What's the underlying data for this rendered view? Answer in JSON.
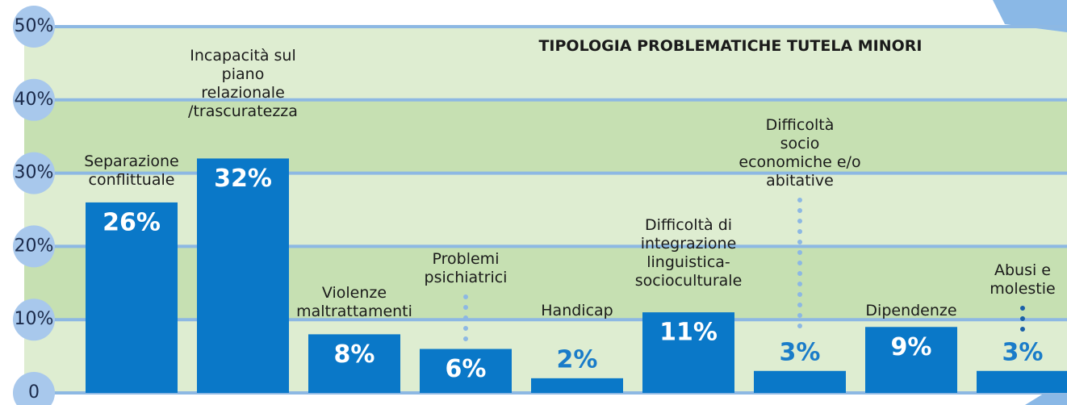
{
  "chart_data": {
    "type": "bar",
    "title": "TIPOLOGIA PROBLEMATICHE TUTELA MINORI",
    "categories": [
      "Separazione\nconflittuale",
      "Incapacità sul\npiano relazionale\n/trascuratezza",
      "Violenze\nmaltrattamenti",
      "Problemi\npsichiatrici",
      "Handicap",
      "Difficoltà di\nintegrazione\nlinguistica-\nsocioculturale",
      "Difficoltà\nsocio\neconomiche e/o\nabitative",
      "Dipendenze",
      "Abusi e\nmolestie"
    ],
    "values": [
      26,
      32,
      8,
      6,
      2,
      11,
      3,
      9,
      3
    ],
    "value_labels": [
      "26%",
      "32%",
      "8%",
      "6%",
      "2%",
      "11%",
      "3%",
      "9%",
      "3%"
    ],
    "color": "#0a78c8",
    "ylim": [
      0,
      50
    ],
    "yticks": [
      0,
      {
        "value": 10,
        "label": "10%"
      },
      {
        "value": 20,
        "label": "20%"
      },
      {
        "value": 30,
        "label": "30%"
      },
      {
        "value": 40,
        "label": "40%"
      },
      {
        "value": 50,
        "label": "50%"
      }
    ],
    "grid": true
  }
}
